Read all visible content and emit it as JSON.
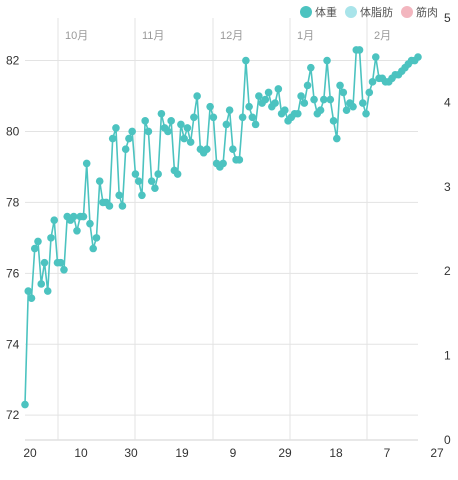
{
  "legend": [
    {
      "label": "体重",
      "color": "#4cc3c0"
    },
    {
      "label": "体脂肪",
      "color": "#a9e4ea"
    },
    {
      "label": "筋肉",
      "color": "#f3b6bf"
    }
  ],
  "chart_data": {
    "type": "line",
    "series": [
      {
        "name": "体重",
        "color": "#4cc3c0",
        "x": [
          0,
          1,
          2,
          3,
          4,
          5,
          6,
          7,
          8,
          9,
          10,
          11,
          12,
          13,
          14,
          15,
          16,
          17,
          18,
          19,
          20,
          21,
          22,
          23,
          24,
          25,
          26,
          27,
          28,
          29,
          30,
          31,
          32,
          33,
          34,
          35,
          36,
          37,
          38,
          39,
          40,
          41,
          42,
          43,
          44,
          45,
          46,
          47,
          48,
          49,
          50,
          51,
          52,
          53,
          54,
          55,
          56,
          57,
          58,
          59,
          60,
          61,
          62,
          63,
          64,
          65,
          66,
          67,
          68,
          69,
          70,
          71,
          72,
          73,
          74,
          75,
          76,
          77,
          78,
          79,
          80,
          81,
          82,
          83,
          84,
          85,
          86,
          87,
          88,
          89,
          90,
          91,
          92,
          93,
          94,
          95,
          96,
          97,
          98,
          99,
          100,
          101,
          102,
          103,
          104,
          105,
          106,
          107,
          108,
          109,
          110,
          111,
          112,
          113,
          114,
          115,
          116,
          117,
          118,
          119,
          120,
          121
        ],
        "y": [
          72.3,
          75.5,
          75.3,
          76.7,
          76.9,
          75.7,
          76.3,
          75.5,
          77.0,
          77.5,
          76.3,
          76.3,
          76.1,
          77.6,
          77.5,
          77.6,
          77.2,
          77.6,
          77.6,
          79.1,
          77.4,
          76.7,
          77.0,
          78.6,
          78.0,
          78.0,
          77.9,
          79.8,
          80.1,
          78.2,
          77.9,
          79.5,
          79.8,
          80.0,
          78.8,
          78.6,
          78.2,
          80.3,
          80.0,
          78.6,
          78.4,
          78.8,
          80.5,
          80.1,
          80.0,
          80.3,
          78.9,
          78.8,
          80.2,
          79.8,
          80.1,
          79.7,
          80.4,
          81.0,
          79.5,
          79.4,
          79.5,
          80.7,
          80.4,
          79.1,
          79.0,
          79.1,
          80.2,
          80.6,
          79.5,
          79.2,
          79.2,
          80.4,
          82.0,
          80.7,
          80.4,
          80.2,
          81.0,
          80.8,
          80.9,
          81.1,
          80.7,
          80.8,
          81.2,
          80.5,
          80.6,
          80.3,
          80.4,
          80.5,
          80.5,
          81.0,
          80.8,
          81.3,
          81.8,
          80.9,
          80.5,
          80.6,
          80.9,
          82.0,
          80.9,
          80.3,
          79.8,
          81.3,
          81.1,
          80.6,
          80.8,
          80.7,
          82.3,
          82.3,
          80.8,
          80.5,
          81.1,
          81.4,
          82.1,
          81.5,
          81.5,
          81.4,
          81.4,
          81.5,
          81.6,
          81.6,
          81.7,
          81.8,
          81.9,
          82.0,
          82.0,
          82.1
        ]
      }
    ],
    "x_tick_labels": [
      "20",
      "10",
      "30",
      "19",
      "9",
      "29",
      "18",
      "7",
      "27"
    ],
    "month_labels": [
      "10月",
      "11月",
      "12月",
      "1月",
      "2月"
    ],
    "y_left_ticks": [
      72,
      74,
      76,
      78,
      80,
      82
    ],
    "y_right_ticks": [
      0,
      1,
      2,
      3,
      4,
      5
    ],
    "ylim": [
      71.3,
      83.2
    ],
    "grid": true
  }
}
